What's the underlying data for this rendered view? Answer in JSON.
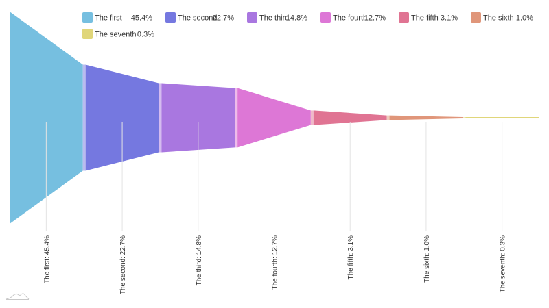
{
  "chart_data": {
    "type": "funnel",
    "categories": [
      "The first",
      "The second",
      "The third",
      "The fourth",
      "The fifth",
      "The sixth",
      "The seventh"
    ],
    "values": [
      45.4,
      22.7,
      14.8,
      12.7,
      3.1,
      1.0,
      0.3
    ],
    "value_suffix": "%",
    "legend_position": "top-right",
    "colors": [
      "#76bfe0",
      "#7578e0",
      "#a977e0",
      "#dd77d6",
      "#e07493",
      "#e0967a",
      "#e0d67a"
    ],
    "link_colors": [
      "#b9dcef",
      "#babbef",
      "#d4bbef",
      "#eebbea",
      "#efb9c9",
      "#efcabc",
      "#efeabc"
    ]
  }
}
